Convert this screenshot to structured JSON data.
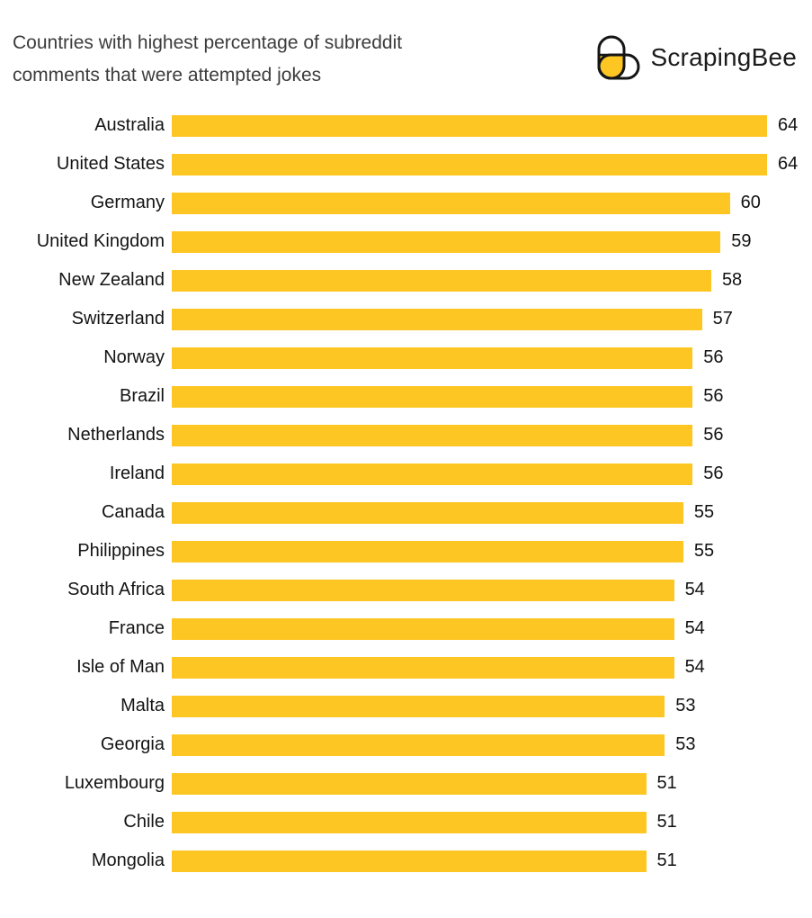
{
  "header": {
    "title_lines": [
      "Countries with highest percentage of subreddit",
      "comments that were attempted jokes"
    ],
    "brand": "ScrapingBee"
  },
  "colors": {
    "bar": "#FDC623",
    "logo_yellow": "#FDC623",
    "logo_outline": "#151515",
    "title_text": "#3C3C3C",
    "label_text": "#141414"
  },
  "chart_data": {
    "type": "bar",
    "orientation": "horizontal",
    "title": "Countries with highest percentage of subreddit comments that were attempted jokes",
    "categories": [
      "Australia",
      "United States",
      "Germany",
      "United Kingdom",
      "New Zealand",
      "Switzerland",
      "Norway",
      "Brazil",
      "Netherlands",
      "Ireland",
      "Canada",
      "Philippines",
      "South Africa",
      "France",
      "Isle of Man",
      "Malta",
      "Georgia",
      "Luxembourg",
      "Chile",
      "Mongolia"
    ],
    "values": [
      64,
      64,
      60,
      59,
      58,
      57,
      56,
      56,
      56,
      56,
      55,
      55,
      54,
      54,
      54,
      53,
      53,
      51,
      51,
      51
    ],
    "xlabel": "",
    "ylabel": "",
    "xlim": [
      0,
      64
    ],
    "grid": false,
    "legend": false,
    "value_labels": "end-of-bar"
  }
}
